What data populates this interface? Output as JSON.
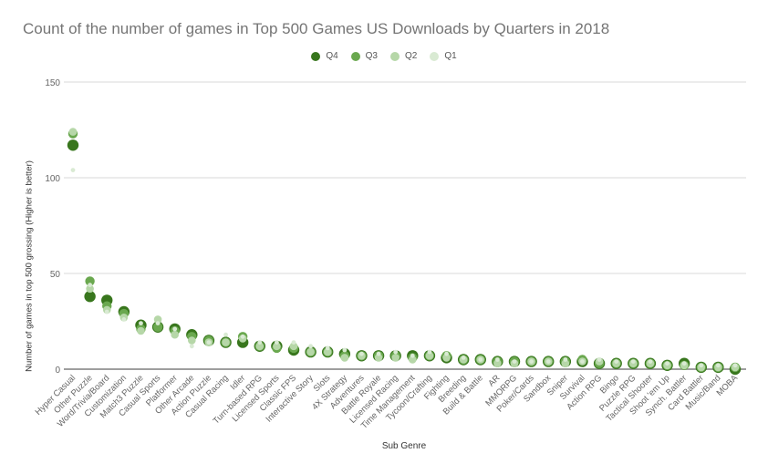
{
  "chart_data": {
    "type": "scatter",
    "title": "Count of the number of games in Top 500 Games US Downloads by Quarters in 2018",
    "xlabel": "Sub Genre",
    "ylabel": "Number of games in top 500 grossing (Higher is better)",
    "ylim": [
      0,
      150
    ],
    "yticks": [
      0,
      50,
      100,
      150
    ],
    "grid": true,
    "legend_position": "top-center",
    "categories": [
      "Hyper Casual",
      "Other Puzzle",
      "Word/Trivia/Board",
      "Customization",
      "Match3 Puzzle",
      "Casual Sports",
      "Platformer",
      "Other Arcade",
      "Action Puzzle",
      "Casual Racing",
      "Idler",
      "Turn-based RPG",
      "Licensed Sports",
      "Classic FPS",
      "Interactive Story",
      "Slots",
      "4X Strategy",
      "Adventures",
      "Battle Royale",
      "Licensed Racing",
      "Time Management",
      "Tycoon/Crafting",
      "Fighting",
      "Breeding",
      "Build & Battle",
      "AR",
      "MMORPG",
      "Poker/Cards",
      "Sandbox",
      "Sniper",
      "Survival",
      "Action RPG",
      "Bingo",
      "Puzzle RPG",
      "Tactical Shooter",
      "Shoot 'em Up",
      "Synch. Battler",
      "Card Battler",
      "Music/Band",
      "MOBA"
    ],
    "series": [
      {
        "name": "Q1",
        "color": "#d9ead3",
        "values": [
          104,
          44,
          30,
          26,
          24,
          24,
          21,
          12,
          14,
          18,
          17,
          14,
          14,
          14,
          12,
          11,
          10,
          8,
          8,
          9,
          7,
          9,
          8,
          6,
          5,
          5,
          4,
          4,
          4,
          5,
          4,
          5,
          4,
          4,
          4,
          3,
          3,
          2,
          2,
          2
        ]
      },
      {
        "name": "Q2",
        "color": "#b6d7a8",
        "values": [
          124,
          42,
          31,
          27,
          20,
          26,
          18,
          15,
          14,
          14,
          16,
          12,
          12,
          12,
          9,
          9,
          6,
          7,
          6,
          6,
          5,
          7,
          6,
          5,
          5,
          3,
          3,
          4,
          4,
          3,
          4,
          4,
          3,
          3,
          3,
          2,
          2,
          1,
          1,
          1
        ]
      },
      {
        "name": "Q3",
        "color": "#6aa84f",
        "values": [
          123,
          46,
          33,
          29,
          21,
          22,
          20,
          17,
          15,
          14,
          17,
          12,
          11,
          11,
          9,
          9,
          7,
          7,
          7,
          7,
          6,
          7,
          7,
          5,
          5,
          4,
          4,
          4,
          4,
          4,
          5,
          3,
          3,
          3,
          3,
          2,
          2,
          1,
          1,
          1
        ]
      },
      {
        "name": "Q4",
        "color": "#38761d",
        "values": [
          117,
          38,
          36,
          30,
          23,
          22,
          21,
          18,
          15,
          14,
          14,
          12,
          12,
          10,
          9,
          9,
          8,
          7,
          7,
          7,
          7,
          7,
          6,
          5,
          5,
          4,
          4,
          4,
          4,
          4,
          4,
          3,
          3,
          3,
          3,
          2,
          3,
          1,
          1,
          0
        ]
      }
    ]
  }
}
